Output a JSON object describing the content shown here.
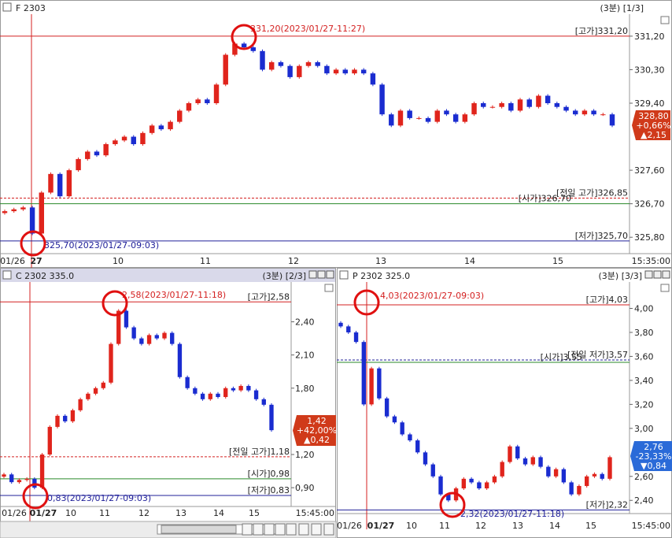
{
  "panels": [
    {
      "title": "F 2303",
      "period": "(3분) [1/3]",
      "ylim": [
        325.36,
        331.79
      ],
      "yticks": [
        {
          "value": 331.2,
          "label": "331,20"
        },
        {
          "value": 330.3,
          "label": "330,30"
        },
        {
          "value": 329.4,
          "label": "329,40"
        },
        {
          "value": 327.6,
          "label": "327,60"
        },
        {
          "value": 326.7,
          "label": "326,70"
        },
        {
          "value": 325.8,
          "label": "325,80"
        }
      ],
      "xticks": [
        "01/26",
        "27",
        "10",
        "11",
        "12",
        "13",
        "14",
        "15"
      ],
      "end_time": "15:35:00",
      "open": [
        326.45,
        326.5,
        326.55,
        326.6,
        325.9,
        327.0,
        327.5,
        326.9,
        327.6,
        327.9,
        328.1,
        328.0,
        328.3,
        328.4,
        328.5,
        328.3,
        328.6,
        328.8,
        328.7,
        328.9,
        329.2,
        329.4,
        329.5,
        329.4,
        329.9,
        330.7,
        331.0,
        330.9,
        330.8,
        330.3,
        330.5,
        330.4,
        330.1,
        330.4,
        330.5,
        330.4,
        330.2,
        330.3,
        330.2,
        330.3,
        330.2,
        329.9,
        329.1,
        328.8,
        329.2,
        329.0,
        329.0,
        328.9,
        329.2,
        329.1,
        328.9,
        329.1,
        329.4,
        329.3,
        329.3,
        329.4,
        329.2,
        329.5,
        329.3,
        329.6,
        329.4,
        329.3,
        329.2,
        329.1,
        329.2,
        329.1,
        329.1
      ],
      "close": [
        326.5,
        326.55,
        326.6,
        325.9,
        327.0,
        327.5,
        326.9,
        327.6,
        327.9,
        328.1,
        328.0,
        328.3,
        328.4,
        328.5,
        328.3,
        328.6,
        328.8,
        328.7,
        328.9,
        329.2,
        329.4,
        329.5,
        329.4,
        329.9,
        330.7,
        331.0,
        330.9,
        330.8,
        330.3,
        330.5,
        330.4,
        330.1,
        330.4,
        330.5,
        330.4,
        330.2,
        330.3,
        330.2,
        330.3,
        330.2,
        329.9,
        329.1,
        328.8,
        329.2,
        329.0,
        329.0,
        328.9,
        329.2,
        329.1,
        328.9,
        329.1,
        329.4,
        329.3,
        329.3,
        329.4,
        329.2,
        329.5,
        329.3,
        329.6,
        329.4,
        329.3,
        329.2,
        329.1,
        329.2,
        329.1,
        329.1,
        328.8
      ],
      "levels": [
        {
          "label": "[고가]331,20",
          "value": 331.2,
          "color": "#d42020",
          "style": "solid"
        },
        {
          "label": "[전일 고가]326,85",
          "value": 326.85,
          "color": "#d42020",
          "style": "dashed"
        },
        {
          "label": "[시가]326,70",
          "value": 326.7,
          "color": "#2a8a2a",
          "style": "solid"
        },
        {
          "label": "[저가]325,70",
          "value": 325.7,
          "color": "#20209a",
          "style": "solid"
        }
      ],
      "annotations": [
        "331,20(2023/01/27-11:27)",
        "325,70(2023/01/27-09:03)"
      ],
      "badge": {
        "lines": [
          "328,80",
          "+0,66%",
          "▲2,15"
        ],
        "color": "#d03a1a"
      }
    },
    {
      "title": "C 2302 335.0",
      "period": "(3분) [2/3]",
      "ylim": [
        0.73,
        2.76
      ],
      "yticks": [
        {
          "value": 2.4,
          "label": "2,40"
        },
        {
          "value": 2.1,
          "label": "2,10"
        },
        {
          "value": 1.8,
          "label": "1,80"
        },
        {
          "value": 1.2,
          "label": "1,20"
        },
        {
          "value": 0.9,
          "label": "0,90"
        }
      ],
      "xticks": [
        "01/26",
        "01/27",
        "10",
        "11",
        "12",
        "13",
        "14",
        "15"
      ],
      "end_time": "15:45:00",
      "open": [
        1.0,
        1.02,
        0.95,
        0.97,
        0.98,
        0.9,
        1.2,
        1.45,
        1.55,
        1.5,
        1.6,
        1.7,
        1.75,
        1.8,
        1.85,
        2.2,
        2.5,
        2.35,
        2.25,
        2.2,
        2.28,
        2.25,
        2.3,
        2.2,
        1.9,
        1.8,
        1.75,
        1.7,
        1.75,
        1.72,
        1.8,
        1.78,
        1.82,
        1.78,
        1.7,
        1.65
      ],
      "close": [
        1.02,
        0.95,
        0.97,
        0.98,
        0.9,
        1.2,
        1.45,
        1.55,
        1.5,
        1.6,
        1.7,
        1.75,
        1.8,
        1.85,
        2.2,
        2.5,
        2.35,
        2.25,
        2.2,
        2.28,
        2.25,
        2.3,
        2.2,
        1.9,
        1.8,
        1.75,
        1.7,
        1.75,
        1.72,
        1.8,
        1.78,
        1.82,
        1.78,
        1.7,
        1.65,
        1.42
      ],
      "levels": [
        {
          "label": "[고가]2,58",
          "value": 2.58,
          "color": "#d42020",
          "style": "solid"
        },
        {
          "label": "[전일 고가]1,18",
          "value": 1.18,
          "color": "#d42020",
          "style": "dashed"
        },
        {
          "label": "[시가]0,98",
          "value": 0.98,
          "color": "#2a8a2a",
          "style": "solid"
        },
        {
          "label": "[저가]0,83",
          "value": 0.83,
          "color": "#20209a",
          "style": "solid"
        }
      ],
      "annotations": [
        "2,58(2023/01/27-11:18)",
        "0,83(2023/01/27-09:03)"
      ],
      "badge": {
        "lines": [
          "1,42",
          "+42,00%",
          "▲0,42"
        ],
        "color": "#d03a1a"
      }
    },
    {
      "title": "P 2302 325.0",
      "period": "(3분) [3/3]",
      "ylim": [
        2.29,
        4.22
      ],
      "yticks": [
        {
          "value": 4.0,
          "label": "4,00"
        },
        {
          "value": 3.8,
          "label": "3,80"
        },
        {
          "value": 3.6,
          "label": "3,60"
        },
        {
          "value": 3.4,
          "label": "3,40"
        },
        {
          "value": 3.2,
          "label": "3,20"
        },
        {
          "value": 3.0,
          "label": "3,00"
        },
        {
          "value": 2.6,
          "label": "2,60"
        },
        {
          "value": 2.4,
          "label": "2,40"
        }
      ],
      "xticks": [
        "01/26",
        "01/27",
        "10",
        "11",
        "12",
        "13",
        "14",
        "15"
      ],
      "end_time": "15:45:00",
      "open": [
        3.88,
        3.85,
        3.8,
        3.72,
        3.2,
        3.5,
        3.25,
        3.1,
        3.05,
        2.95,
        2.9,
        2.8,
        2.7,
        2.6,
        2.45,
        2.4,
        2.5,
        2.58,
        2.55,
        2.5,
        2.55,
        2.6,
        2.72,
        2.85,
        2.75,
        2.7,
        2.76,
        2.68,
        2.6,
        2.66,
        2.55,
        2.45,
        2.52,
        2.6,
        2.62,
        2.58
      ],
      "close": [
        3.85,
        3.8,
        3.72,
        3.2,
        3.5,
        3.25,
        3.1,
        3.05,
        2.95,
        2.9,
        2.8,
        2.7,
        2.6,
        2.45,
        2.4,
        2.5,
        2.58,
        2.55,
        2.5,
        2.55,
        2.6,
        2.72,
        2.85,
        2.75,
        2.7,
        2.76,
        2.68,
        2.6,
        2.66,
        2.55,
        2.45,
        2.52,
        2.6,
        2.62,
        2.58,
        2.76
      ],
      "levels": [
        {
          "label": "[고가]4,03",
          "value": 4.03,
          "color": "#d42020",
          "style": "solid"
        },
        {
          "label": "[전일 저가]3,57",
          "value": 3.57,
          "color": "#20209a",
          "style": "dashed"
        },
        {
          "label": "[시가]3,55",
          "value": 3.55,
          "color": "#2a8a2a",
          "style": "solid"
        },
        {
          "label": "[저가]2,32",
          "value": 2.32,
          "color": "#20209a",
          "style": "solid"
        }
      ],
      "annotations": [
        "4,03(2023/01/27-09:03)",
        "2,32(2023/01/27-11:18)"
      ],
      "badge": {
        "lines": [
          "2,76",
          "-23,33%",
          "▼0,84"
        ],
        "color": "#2a6ad8"
      }
    }
  ]
}
